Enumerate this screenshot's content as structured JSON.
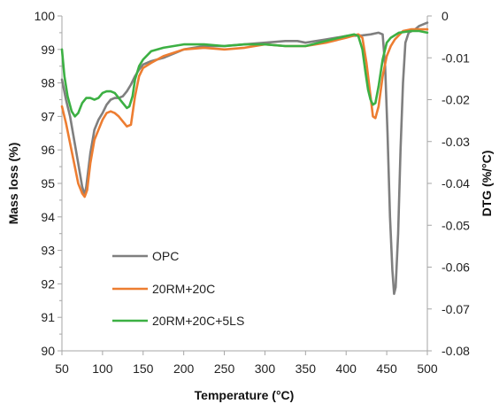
{
  "chart_data": {
    "type": "line",
    "title": "",
    "xlabel": "Temperature (°C)",
    "ylabel": "Mass loss (%)",
    "y2label": "DTG (%/°C)",
    "xlim": [
      50,
      500
    ],
    "ylim": [
      90,
      100
    ],
    "y2lim": [
      -0.08,
      0
    ],
    "x_ticks": [
      "50",
      "100",
      "150",
      "200",
      "250",
      "300",
      "350",
      "400",
      "450",
      "500"
    ],
    "y_ticks": [
      "90",
      "91",
      "92",
      "93",
      "94",
      "95",
      "96",
      "97",
      "98",
      "99",
      "100"
    ],
    "y2_ticks": [
      "-0.08",
      "-0.07",
      "-0.06",
      "-0.05",
      "-0.04",
      "-0.03",
      "-0.02",
      "-0.01",
      "0"
    ],
    "grid": false,
    "legend_position": "bottom-left",
    "series": [
      {
        "name": "OPC",
        "color": "#7f7f7f",
        "points": [
          [
            50,
            98.1
          ],
          [
            55,
            97.5
          ],
          [
            60,
            97.0
          ],
          [
            65,
            96.3
          ],
          [
            70,
            95.6
          ],
          [
            75,
            94.9
          ],
          [
            78,
            94.65
          ],
          [
            80,
            94.9
          ],
          [
            85,
            95.9
          ],
          [
            90,
            96.6
          ],
          [
            95,
            96.9
          ],
          [
            100,
            97.1
          ],
          [
            105,
            97.35
          ],
          [
            110,
            97.5
          ],
          [
            115,
            97.55
          ],
          [
            120,
            97.55
          ],
          [
            125,
            97.6
          ],
          [
            130,
            97.75
          ],
          [
            135,
            97.95
          ],
          [
            140,
            98.2
          ],
          [
            145,
            98.4
          ],
          [
            150,
            98.55
          ],
          [
            160,
            98.65
          ],
          [
            175,
            98.75
          ],
          [
            200,
            99.0
          ],
          [
            225,
            99.1
          ],
          [
            250,
            99.1
          ],
          [
            275,
            99.15
          ],
          [
            300,
            99.2
          ],
          [
            325,
            99.25
          ],
          [
            340,
            99.25
          ],
          [
            350,
            99.2
          ],
          [
            375,
            99.3
          ],
          [
            400,
            99.4
          ],
          [
            420,
            99.42
          ],
          [
            430,
            99.45
          ],
          [
            440,
            99.5
          ],
          [
            445,
            99.45
          ],
          [
            448,
            98.5
          ],
          [
            451,
            96.5
          ],
          [
            454,
            94.0
          ],
          [
            457,
            92.4
          ],
          [
            459,
            91.7
          ],
          [
            461,
            91.9
          ],
          [
            464,
            93.5
          ],
          [
            467,
            96.0
          ],
          [
            470,
            98.0
          ],
          [
            473,
            99.2
          ],
          [
            477,
            99.5
          ],
          [
            485,
            99.6
          ],
          [
            490,
            99.7
          ],
          [
            500,
            99.8
          ]
        ]
      },
      {
        "name": "20RM+20C",
        "color": "#ed7d31",
        "points": [
          [
            50,
            97.3
          ],
          [
            55,
            96.8
          ],
          [
            60,
            96.2
          ],
          [
            65,
            95.6
          ],
          [
            70,
            95.0
          ],
          [
            75,
            94.7
          ],
          [
            78,
            94.6
          ],
          [
            81,
            94.8
          ],
          [
            85,
            95.6
          ],
          [
            90,
            96.3
          ],
          [
            95,
            96.6
          ],
          [
            100,
            96.9
          ],
          [
            105,
            97.1
          ],
          [
            110,
            97.15
          ],
          [
            115,
            97.1
          ],
          [
            120,
            97.0
          ],
          [
            125,
            96.85
          ],
          [
            130,
            96.7
          ],
          [
            135,
            96.75
          ],
          [
            140,
            97.6
          ],
          [
            145,
            98.2
          ],
          [
            150,
            98.45
          ],
          [
            160,
            98.6
          ],
          [
            175,
            98.8
          ],
          [
            200,
            99.0
          ],
          [
            225,
            99.05
          ],
          [
            250,
            99.0
          ],
          [
            275,
            99.05
          ],
          [
            300,
            99.15
          ],
          [
            325,
            99.1
          ],
          [
            350,
            99.1
          ],
          [
            375,
            99.2
          ],
          [
            400,
            99.35
          ],
          [
            415,
            99.45
          ],
          [
            420,
            99.35
          ],
          [
            425,
            98.6
          ],
          [
            430,
            97.6
          ],
          [
            433,
            97.0
          ],
          [
            436,
            96.95
          ],
          [
            440,
            97.3
          ],
          [
            445,
            98.2
          ],
          [
            450,
            98.8
          ],
          [
            455,
            99.1
          ],
          [
            460,
            99.3
          ],
          [
            470,
            99.55
          ],
          [
            480,
            99.6
          ],
          [
            500,
            99.6
          ]
        ]
      },
      {
        "name": "20RM+20C+5LS",
        "color": "#3cb043",
        "points": [
          [
            50,
            99.0
          ],
          [
            53,
            98.2
          ],
          [
            57,
            97.6
          ],
          [
            62,
            97.15
          ],
          [
            66,
            97.0
          ],
          [
            70,
            97.1
          ],
          [
            75,
            97.4
          ],
          [
            80,
            97.55
          ],
          [
            85,
            97.55
          ],
          [
            90,
            97.5
          ],
          [
            95,
            97.55
          ],
          [
            100,
            97.7
          ],
          [
            105,
            97.75
          ],
          [
            110,
            97.75
          ],
          [
            115,
            97.7
          ],
          [
            120,
            97.55
          ],
          [
            125,
            97.4
          ],
          [
            130,
            97.25
          ],
          [
            133,
            97.3
          ],
          [
            137,
            97.6
          ],
          [
            140,
            98.1
          ],
          [
            145,
            98.5
          ],
          [
            150,
            98.7
          ],
          [
            160,
            98.95
          ],
          [
            175,
            99.05
          ],
          [
            200,
            99.15
          ],
          [
            225,
            99.15
          ],
          [
            250,
            99.1
          ],
          [
            275,
            99.15
          ],
          [
            300,
            99.15
          ],
          [
            325,
            99.1
          ],
          [
            350,
            99.1
          ],
          [
            375,
            99.25
          ],
          [
            400,
            99.4
          ],
          [
            410,
            99.45
          ],
          [
            415,
            99.4
          ],
          [
            420,
            99.0
          ],
          [
            424,
            98.3
          ],
          [
            427,
            97.8
          ],
          [
            430,
            97.5
          ],
          [
            433,
            97.35
          ],
          [
            436,
            97.4
          ],
          [
            440,
            97.9
          ],
          [
            445,
            98.7
          ],
          [
            450,
            99.2
          ],
          [
            455,
            99.35
          ],
          [
            465,
            99.5
          ],
          [
            480,
            99.55
          ],
          [
            490,
            99.55
          ],
          [
            500,
            99.5
          ]
        ]
      }
    ]
  }
}
